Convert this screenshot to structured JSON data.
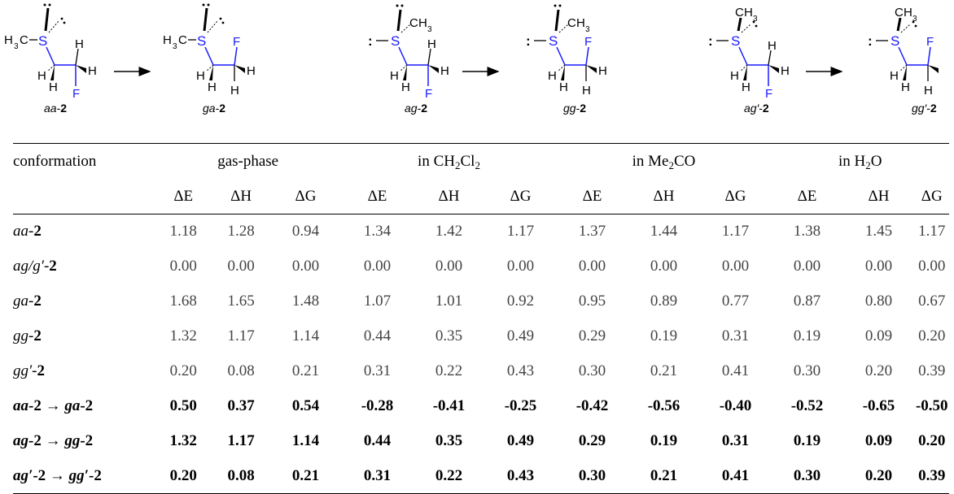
{
  "scheme": {
    "labels": [
      {
        "it": "aa",
        "b": "2"
      },
      {
        "it": "ga",
        "b": "2"
      },
      {
        "it": "ag",
        "b": "2"
      },
      {
        "it": "gg",
        "b": "2"
      },
      {
        "it": "ag′",
        "b": "2"
      },
      {
        "it": "gg′",
        "b": "2"
      }
    ],
    "atoms": {
      "S": "S",
      "F": "F",
      "H": "H",
      "C": "C",
      "H3": "3",
      "pair": ":",
      "dash": "–"
    }
  },
  "table": {
    "columns": [
      {
        "label": "conformation"
      },
      {
        "pre": "gas-phase"
      },
      {
        "pre": "in CH",
        "sub1": "2",
        "mid": "Cl",
        "sub2": "2"
      },
      {
        "pre": "in Me",
        "sub1": "2",
        "mid": "CO"
      },
      {
        "pre": "in H",
        "sub1": "2",
        "mid": "O"
      }
    ],
    "subheaders": [
      "ΔE",
      "ΔH",
      "ΔG",
      "ΔE",
      "ΔH",
      "ΔG",
      "ΔE",
      "ΔH",
      "ΔG",
      "ΔE",
      "ΔH",
      "ΔG"
    ],
    "rows": [
      {
        "a": "aa",
        "b": "2",
        "c": "",
        "d": "",
        "values": [
          "1.18",
          "1.28",
          "0.94",
          "1.34",
          "1.42",
          "1.17",
          "1.37",
          "1.44",
          "1.17",
          "1.38",
          "1.45",
          "1.17"
        ]
      },
      {
        "a": "ag/g′",
        "b": "2",
        "c": "",
        "d": "",
        "values": [
          "0.00",
          "0.00",
          "0.00",
          "0.00",
          "0.00",
          "0.00",
          "0.00",
          "0.00",
          "0.00",
          "0.00",
          "0.00",
          "0.00"
        ]
      },
      {
        "a": "ga",
        "b": "2",
        "c": "",
        "d": "",
        "values": [
          "1.68",
          "1.65",
          "1.48",
          "1.07",
          "1.01",
          "0.92",
          "0.95",
          "0.89",
          "0.77",
          "0.87",
          "0.80",
          "0.67"
        ]
      },
      {
        "a": "gg",
        "b": "2",
        "c": "",
        "d": "",
        "values": [
          "1.32",
          "1.17",
          "1.14",
          "0.44",
          "0.35",
          "0.49",
          "0.29",
          "0.19",
          "0.31",
          "0.19",
          "0.09",
          "0.20"
        ]
      },
      {
        "a": "gg′",
        "b": "2",
        "c": "",
        "d": "",
        "values": [
          "0.20",
          "0.08",
          "0.21",
          "0.31",
          "0.22",
          "0.43",
          "0.30",
          "0.21",
          "0.41",
          "0.30",
          "0.20",
          "0.39"
        ]
      },
      {
        "a": "aa",
        "b": "2",
        "arrow": " → ",
        "c": "ga",
        "d": "2",
        "values": [
          "0.50",
          "0.37",
          "0.54",
          "-0.28",
          "-0.41",
          "-0.25",
          "-0.42",
          "-0.56",
          "-0.40",
          "-0.52",
          "-0.65",
          "-0.50"
        ]
      },
      {
        "a": "ag",
        "b": "2",
        "arrow": " → ",
        "c": "gg",
        "d": "2",
        "values": [
          "1.32",
          "1.17",
          "1.14",
          "0.44",
          "0.35",
          "0.49",
          "0.29",
          "0.19",
          "0.31",
          "0.19",
          "0.09",
          "0.20"
        ]
      },
      {
        "a": "ag′",
        "b": "2",
        "arrow": " → ",
        "c": "gg′",
        "d": "2",
        "values": [
          "0.20",
          "0.08",
          "0.21",
          "0.31",
          "0.22",
          "0.43",
          "0.30",
          "0.21",
          "0.41",
          "0.30",
          "0.20",
          "0.39"
        ]
      }
    ]
  }
}
